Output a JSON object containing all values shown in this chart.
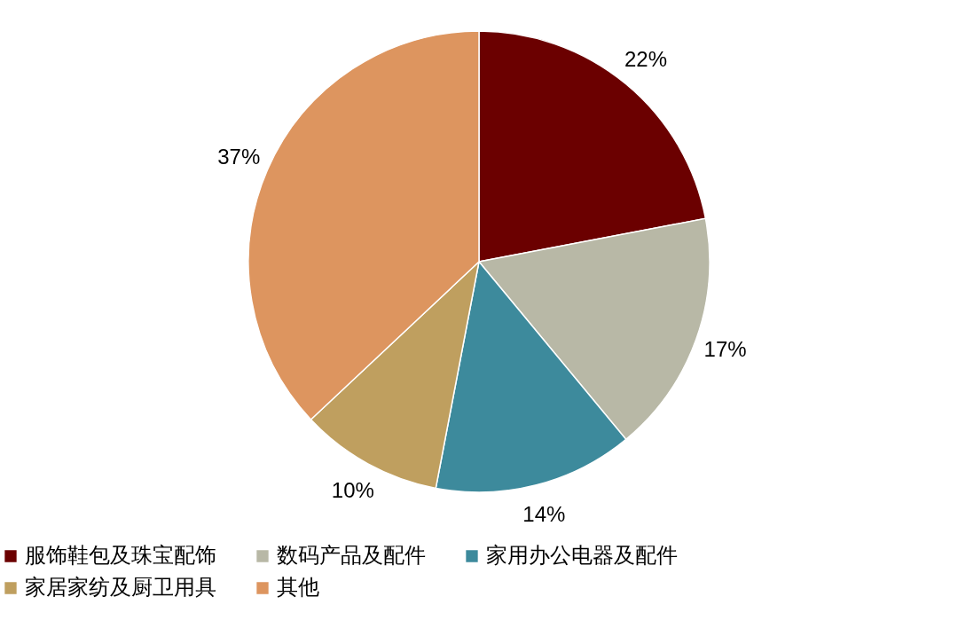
{
  "chart_data": {
    "type": "pie",
    "categories": [
      "服饰鞋包及珠宝配饰",
      "数码产品及配件",
      "家用办公电器及配件",
      "家居家纺及厨卫用具",
      "其他"
    ],
    "values": [
      22,
      17,
      14,
      10,
      37
    ],
    "colors": [
      "#6b0000",
      "#b8b8a6",
      "#3d8a9c",
      "#bf9f5f",
      "#dd955f"
    ],
    "value_labels": [
      "22%",
      "17%",
      "14%",
      "10%",
      "37%"
    ],
    "legend": "bottom"
  }
}
